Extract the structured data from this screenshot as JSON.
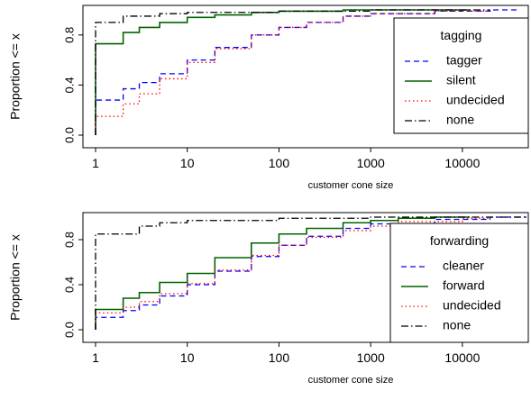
{
  "chart_data": [
    {
      "type": "line",
      "step": true,
      "title": "",
      "xlabel": "customer cone size",
      "ylabel": "Proportion <= x",
      "x_scale": "log",
      "xlim": [
        1,
        50000
      ],
      "ylim": [
        0,
        1
      ],
      "x_ticks": [
        1,
        10,
        100,
        1000,
        10000
      ],
      "x_tick_labels": [
        "1",
        "10",
        "100",
        "1000",
        "10000"
      ],
      "y_ticks": [
        0,
        0.4,
        0.8
      ],
      "y_tick_labels": [
        "0.0",
        "0.4",
        "0.8"
      ],
      "legend_title": "tagging",
      "legend_position": "right",
      "series": [
        {
          "name": "tagger",
          "color": "#0000ff",
          "dash": "dashed",
          "points": [
            [
              1,
              0
            ],
            [
              1,
              0.28
            ],
            [
              2,
              0.28
            ],
            [
              2,
              0.37
            ],
            [
              3,
              0.37
            ],
            [
              3,
              0.42
            ],
            [
              5,
              0.49
            ],
            [
              10,
              0.6
            ],
            [
              20,
              0.7
            ],
            [
              50,
              0.8
            ],
            [
              100,
              0.86
            ],
            [
              200,
              0.9
            ],
            [
              500,
              0.95
            ],
            [
              1000,
              0.97
            ],
            [
              5000,
              0.99
            ],
            [
              20000,
              1.0
            ],
            [
              40000,
              1.0
            ]
          ]
        },
        {
          "name": "silent",
          "color": "#006400",
          "dash": "solid",
          "points": [
            [
              1,
              0
            ],
            [
              1,
              0.73
            ],
            [
              2,
              0.73
            ],
            [
              2,
              0.82
            ],
            [
              3,
              0.86
            ],
            [
              5,
              0.9
            ],
            [
              10,
              0.94
            ],
            [
              20,
              0.96
            ],
            [
              50,
              0.98
            ],
            [
              100,
              0.99
            ],
            [
              500,
              1.0
            ],
            [
              12000,
              1.0
            ]
          ]
        },
        {
          "name": "undecided",
          "color": "#ff0000",
          "dash": "dotted",
          "points": [
            [
              1,
              0
            ],
            [
              1,
              0.15
            ],
            [
              2,
              0.15
            ],
            [
              2,
              0.25
            ],
            [
              3,
              0.33
            ],
            [
              5,
              0.45
            ],
            [
              10,
              0.58
            ],
            [
              20,
              0.69
            ],
            [
              50,
              0.8
            ],
            [
              100,
              0.86
            ],
            [
              200,
              0.9
            ],
            [
              500,
              0.95
            ],
            [
              1000,
              0.97
            ],
            [
              5000,
              0.99
            ],
            [
              20000,
              1.0
            ]
          ]
        },
        {
          "name": "none",
          "color": "#000000",
          "dash": "dotdash",
          "points": [
            [
              1,
              0
            ],
            [
              1,
              0.9
            ],
            [
              2,
              0.9
            ],
            [
              2,
              0.95
            ],
            [
              5,
              0.97
            ],
            [
              10,
              0.98
            ],
            [
              100,
              0.99
            ],
            [
              1000,
              1.0
            ],
            [
              20000,
              1.0
            ]
          ]
        }
      ]
    },
    {
      "type": "line",
      "step": true,
      "title": "",
      "xlabel": "customer cone size",
      "ylabel": "Proportion <= x",
      "x_scale": "log",
      "xlim": [
        1,
        50000
      ],
      "ylim": [
        0,
        1
      ],
      "x_ticks": [
        1,
        10,
        100,
        1000,
        10000
      ],
      "x_tick_labels": [
        "1",
        "10",
        "100",
        "1000",
        "10000"
      ],
      "y_ticks": [
        0,
        0.4,
        0.8
      ],
      "y_tick_labels": [
        "0.0",
        "0.4",
        "0.8"
      ],
      "legend_title": "forwarding",
      "legend_position": "right",
      "series": [
        {
          "name": "cleaner",
          "color": "#0000ff",
          "dash": "dashed",
          "points": [
            [
              1,
              0
            ],
            [
              1,
              0.11
            ],
            [
              2,
              0.11
            ],
            [
              2,
              0.17
            ],
            [
              3,
              0.22
            ],
            [
              5,
              0.3
            ],
            [
              10,
              0.4
            ],
            [
              20,
              0.52
            ],
            [
              50,
              0.65
            ],
            [
              100,
              0.75
            ],
            [
              200,
              0.83
            ],
            [
              500,
              0.9
            ],
            [
              1000,
              0.94
            ],
            [
              5000,
              0.98
            ],
            [
              20000,
              1.0
            ],
            [
              50000,
              1.0
            ]
          ]
        },
        {
          "name": "forward",
          "color": "#006400",
          "dash": "solid",
          "points": [
            [
              1,
              0
            ],
            [
              1,
              0.18
            ],
            [
              2,
              0.18
            ],
            [
              2,
              0.28
            ],
            [
              3,
              0.33
            ],
            [
              5,
              0.42
            ],
            [
              10,
              0.5
            ],
            [
              20,
              0.64
            ],
            [
              50,
              0.77
            ],
            [
              100,
              0.85
            ],
            [
              200,
              0.9
            ],
            [
              500,
              0.95
            ],
            [
              1000,
              0.97
            ],
            [
              2000,
              0.99
            ],
            [
              5000,
              1.0
            ],
            [
              12000,
              1.0
            ]
          ]
        },
        {
          "name": "undecided",
          "color": "#ff0000",
          "dash": "dotted",
          "points": [
            [
              1,
              0
            ],
            [
              1,
              0.15
            ],
            [
              2,
              0.15
            ],
            [
              2,
              0.2
            ],
            [
              3,
              0.25
            ],
            [
              5,
              0.32
            ],
            [
              10,
              0.41
            ],
            [
              20,
              0.53
            ],
            [
              50,
              0.66
            ],
            [
              100,
              0.75
            ],
            [
              200,
              0.82
            ],
            [
              500,
              0.88
            ],
            [
              1000,
              0.92
            ],
            [
              2000,
              0.96
            ],
            [
              10000,
              0.99
            ],
            [
              20000,
              1.0
            ]
          ]
        },
        {
          "name": "none",
          "color": "#000000",
          "dash": "dotdash",
          "points": [
            [
              1,
              0
            ],
            [
              1,
              0.85
            ],
            [
              2,
              0.85
            ],
            [
              3,
              0.92
            ],
            [
              5,
              0.95
            ],
            [
              10,
              0.97
            ],
            [
              100,
              0.99
            ],
            [
              1000,
              1.0
            ],
            [
              50000,
              1.0
            ]
          ]
        }
      ]
    }
  ]
}
